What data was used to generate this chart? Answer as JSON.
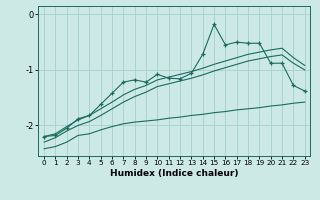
{
  "xlabel": "Humidex (Indice chaleur)",
  "ylabel": "",
  "bg_color": "#cce9e6",
  "line_color": "#1a6b5e",
  "grid_color": "#aad4d0",
  "xlim": [
    -0.5,
    23.5
  ],
  "ylim": [
    -2.55,
    0.15
  ],
  "yticks": [
    0,
    -1,
    -2
  ],
  "xticks": [
    0,
    1,
    2,
    3,
    4,
    5,
    6,
    7,
    8,
    9,
    10,
    11,
    12,
    13,
    14,
    15,
    16,
    17,
    18,
    19,
    20,
    21,
    22,
    23
  ],
  "x": [
    0,
    1,
    2,
    3,
    4,
    5,
    6,
    7,
    8,
    9,
    10,
    11,
    12,
    13,
    14,
    15,
    16,
    17,
    18,
    19,
    20,
    21,
    22,
    23
  ],
  "line_jagged": [
    -2.2,
    -2.18,
    -2.05,
    -1.88,
    -1.82,
    -1.62,
    -1.42,
    -1.22,
    -1.18,
    -1.22,
    -1.08,
    -1.15,
    -1.16,
    -1.06,
    -0.72,
    -0.18,
    -0.55,
    -0.5,
    -0.52,
    -0.52,
    -0.88,
    -0.88,
    -1.28,
    -1.38
  ],
  "line_smooth_upper": [
    -2.2,
    -2.15,
    -2.02,
    -1.9,
    -1.82,
    -1.7,
    -1.58,
    -1.45,
    -1.35,
    -1.28,
    -1.18,
    -1.13,
    -1.08,
    -1.03,
    -0.97,
    -0.9,
    -0.84,
    -0.78,
    -0.72,
    -0.68,
    -0.64,
    -0.61,
    -0.78,
    -0.92
  ],
  "line_smooth_lower": [
    -2.3,
    -2.22,
    -2.1,
    -2.0,
    -1.93,
    -1.82,
    -1.7,
    -1.58,
    -1.48,
    -1.4,
    -1.3,
    -1.25,
    -1.2,
    -1.15,
    -1.09,
    -1.02,
    -0.96,
    -0.9,
    -0.84,
    -0.8,
    -0.76,
    -0.73,
    -0.88,
    -1.0
  ],
  "line_bottom": [
    -2.42,
    -2.38,
    -2.3,
    -2.18,
    -2.15,
    -2.08,
    -2.02,
    -1.97,
    -1.94,
    -1.92,
    -1.9,
    -1.87,
    -1.85,
    -1.82,
    -1.8,
    -1.77,
    -1.75,
    -1.72,
    -1.7,
    -1.68,
    -1.65,
    -1.63,
    -1.6,
    -1.58
  ]
}
